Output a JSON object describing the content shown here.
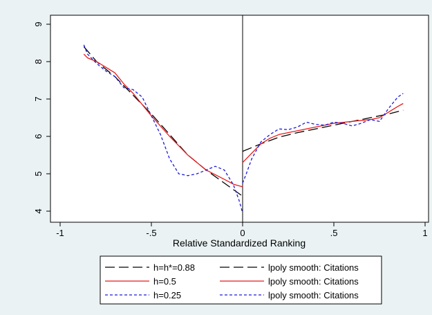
{
  "chart_data": {
    "type": "line",
    "title": "",
    "xlabel": "Relative Standardized Ranking",
    "ylabel": "",
    "xlim": [
      -1,
      1
    ],
    "ylim": [
      3.85,
      9.1
    ],
    "xticks": [
      -1,
      -0.5,
      0,
      0.5,
      1
    ],
    "xtick_labels": [
      "-1",
      "-.5",
      "0",
      ".5",
      "1"
    ],
    "yticks": [
      4,
      5,
      6,
      7,
      8,
      9
    ],
    "ytick_labels": [
      "4",
      "5",
      "6",
      "7",
      "8",
      "9"
    ],
    "cutoff_line_x": 0,
    "grid": false,
    "legend_position": "bottom",
    "legend": [
      {
        "label": "h=h*=0.88",
        "style": "longdash",
        "color": "#000000"
      },
      {
        "label": "lpoly smooth: Citations",
        "style": "longdash",
        "color": "#000000"
      },
      {
        "label": "h=0.5",
        "style": "solid",
        "color": "#e8191b"
      },
      {
        "label": "lpoly smooth: Citations",
        "style": "solid",
        "color": "#e8191b"
      },
      {
        "label": "h=0.25",
        "style": "shortdash",
        "color": "#1a1adb"
      },
      {
        "label": "lpoly smooth: Citations",
        "style": "shortdash",
        "color": "#1a1adb"
      }
    ],
    "series": [
      {
        "style": "longdash",
        "color": "#000000",
        "x": [
          -0.87,
          -0.8,
          -0.7,
          -0.6,
          -0.5,
          -0.4,
          -0.3,
          -0.2,
          -0.1,
          0
        ],
        "y": [
          8.4,
          8.0,
          7.6,
          7.1,
          6.6,
          6.05,
          5.5,
          5.1,
          4.75,
          4.4
        ]
      },
      {
        "style": "longdash",
        "color": "#000000",
        "x": [
          0,
          0.1,
          0.2,
          0.3,
          0.4,
          0.5,
          0.6,
          0.7,
          0.8,
          0.88
        ],
        "y": [
          5.6,
          5.8,
          5.98,
          6.1,
          6.2,
          6.3,
          6.4,
          6.5,
          6.6,
          6.7
        ]
      },
      {
        "style": "solid",
        "color": "#e8191b",
        "x": [
          -0.87,
          -0.85,
          -0.8,
          -0.75,
          -0.7,
          -0.65,
          -0.6,
          -0.5,
          -0.4,
          -0.3,
          -0.2,
          -0.1,
          -0.05,
          0
        ],
        "y": [
          8.2,
          8.1,
          8.0,
          7.85,
          7.7,
          7.4,
          7.15,
          6.55,
          6.0,
          5.5,
          5.1,
          4.85,
          4.72,
          4.65
        ]
      },
      {
        "style": "solid",
        "color": "#e8191b",
        "x": [
          0,
          0.05,
          0.1,
          0.15,
          0.2,
          0.3,
          0.4,
          0.5,
          0.6,
          0.7,
          0.75,
          0.8,
          0.85,
          0.88
        ],
        "y": [
          5.3,
          5.55,
          5.8,
          5.95,
          6.05,
          6.15,
          6.25,
          6.35,
          6.4,
          6.45,
          6.5,
          6.65,
          6.8,
          6.88
        ]
      },
      {
        "style": "shortdash",
        "color": "#1a1adb",
        "x": [
          -0.87,
          -0.85,
          -0.8,
          -0.75,
          -0.7,
          -0.65,
          -0.6,
          -0.55,
          -0.5,
          -0.45,
          -0.4,
          -0.35,
          -0.3,
          -0.25,
          -0.2,
          -0.15,
          -0.1,
          -0.05,
          -0.02,
          0
        ],
        "y": [
          8.45,
          8.2,
          7.95,
          7.75,
          7.6,
          7.3,
          7.25,
          7.05,
          6.55,
          6.05,
          5.4,
          5.0,
          4.95,
          5.0,
          5.1,
          5.2,
          5.1,
          4.7,
          4.3,
          3.95
        ]
      },
      {
        "style": "shortdash",
        "color": "#1a1adb",
        "x": [
          0,
          0.02,
          0.05,
          0.1,
          0.15,
          0.2,
          0.25,
          0.3,
          0.35,
          0.4,
          0.45,
          0.5,
          0.55,
          0.6,
          0.65,
          0.7,
          0.75,
          0.8,
          0.85,
          0.88
        ],
        "y": [
          4.75,
          5.0,
          5.4,
          5.85,
          6.05,
          6.2,
          6.18,
          6.25,
          6.38,
          6.32,
          6.3,
          6.38,
          6.35,
          6.28,
          6.35,
          6.45,
          6.4,
          6.75,
          7.05,
          7.15
        ]
      }
    ]
  }
}
